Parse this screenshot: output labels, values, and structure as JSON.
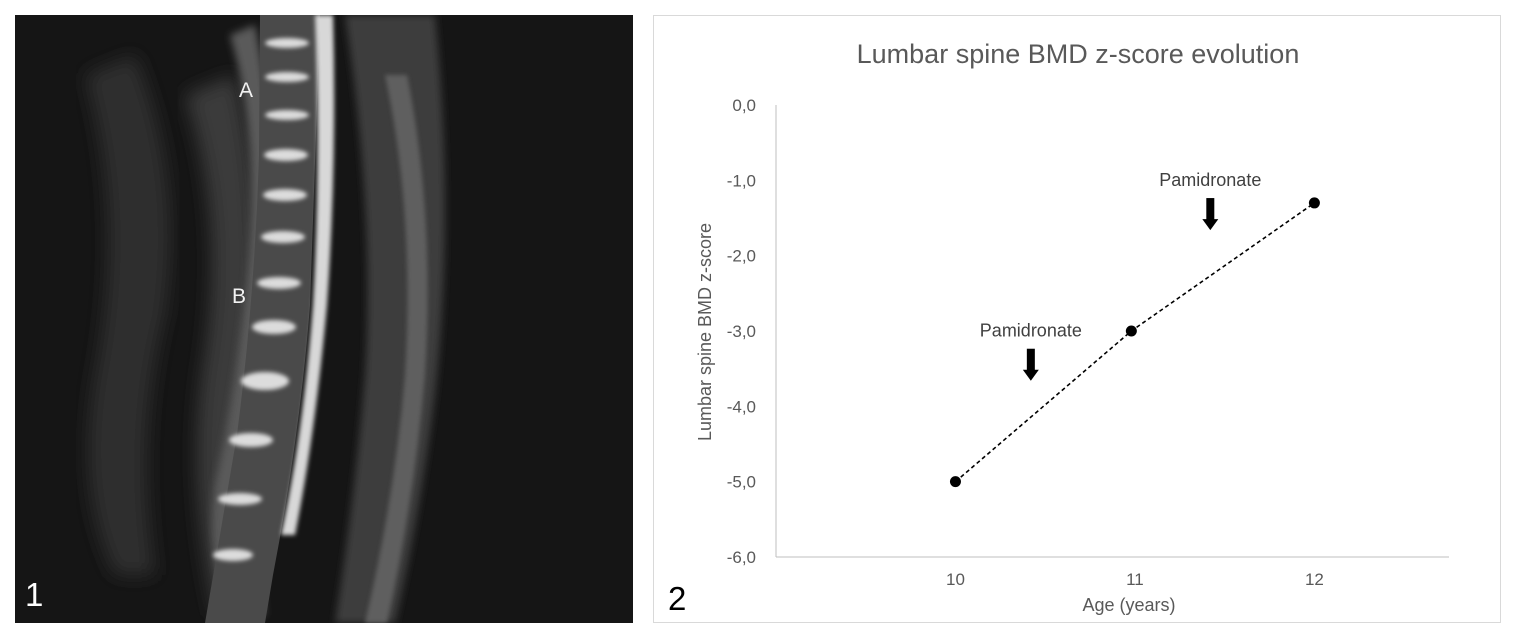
{
  "panels": {
    "mri": {
      "number": "1",
      "letters": [
        "A",
        "B"
      ]
    },
    "chart": {
      "number": "2"
    }
  },
  "chart_data": {
    "type": "line",
    "title": "Lumbar spine BMD z-score evolution",
    "xlabel": "Age (years)",
    "ylabel": "Lumbar spine BMD z-score",
    "x_ticks": [
      10,
      11,
      12
    ],
    "y_ticks": [
      "0,0",
      "-1,0",
      "-2,0",
      "-3,0",
      "-4,0",
      "-5,0",
      "-6,0"
    ],
    "ylim": [
      -6,
      0
    ],
    "xlim": [
      9.0,
      12.75
    ],
    "line_style": "dashed",
    "marker": "circle",
    "color": "#000000",
    "series": [
      {
        "x": [
          10,
          10.98,
          12
        ],
        "values": [
          -5.0,
          -3.0,
          -1.3
        ]
      }
    ],
    "annotations": [
      {
        "text": "Pamidronate",
        "x": 10.42,
        "y": -3.7,
        "arrow": "down"
      },
      {
        "text": "Pamidronate",
        "x": 11.42,
        "y": -1.7,
        "arrow": "down"
      }
    ],
    "grid": false,
    "legend": "none"
  }
}
